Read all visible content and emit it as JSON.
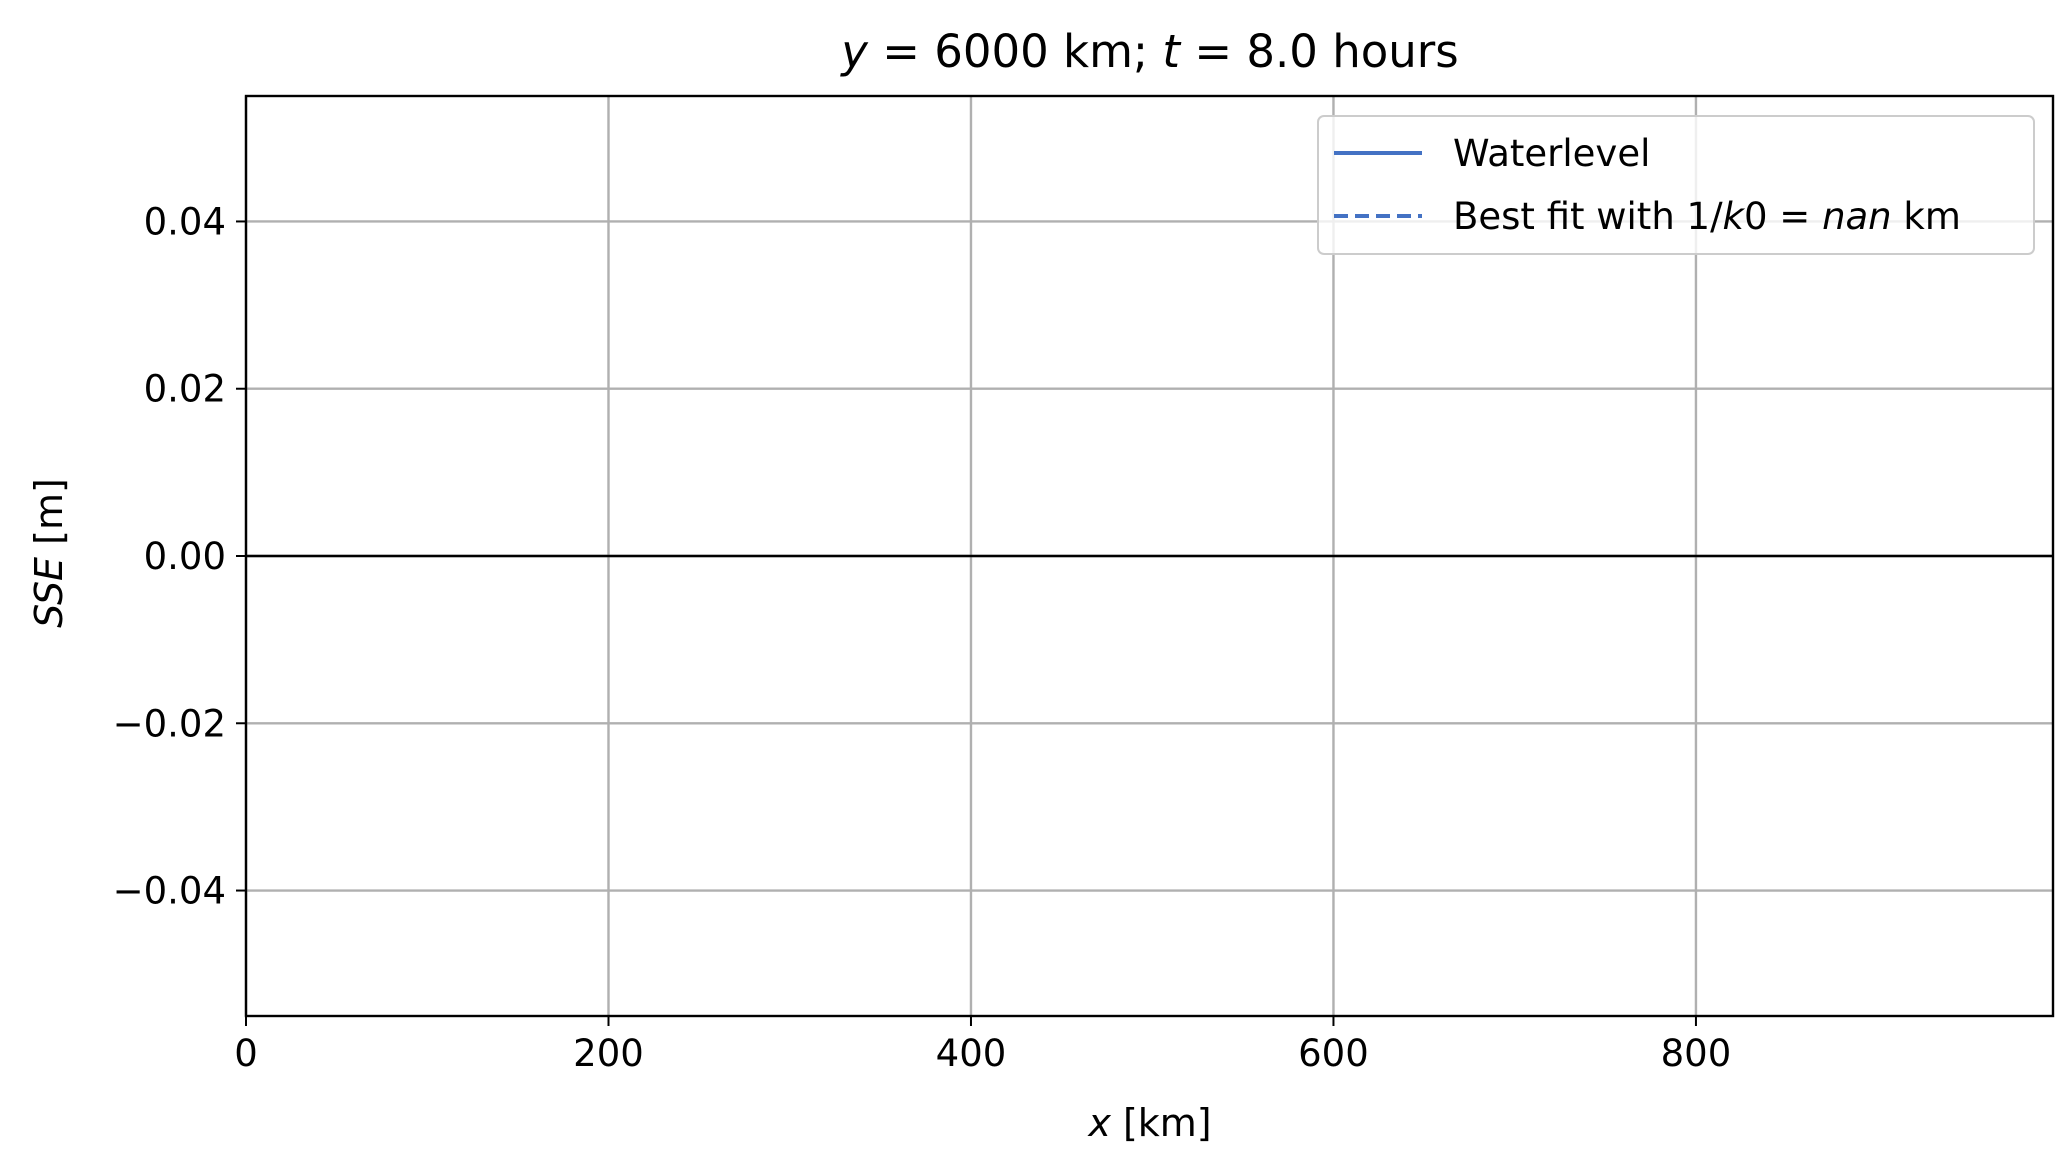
{
  "chart_data": {
    "type": "line",
    "title": {
      "y_var": "y",
      "y_rest": " = 6000 km; ",
      "t_var": "t",
      "t_rest": " = 8.0 hours"
    },
    "xlabel": {
      "var": "x",
      "unit": " [km]"
    },
    "ylabel": {
      "var": "SSE",
      "unit": " [m]"
    },
    "xlim": [
      0,
      997
    ],
    "ylim": [
      -0.055,
      0.055
    ],
    "x_ticks": [
      0,
      200,
      400,
      600,
      800
    ],
    "x_tick_labels": [
      "0",
      "200",
      "400",
      "600",
      "800"
    ],
    "y_ticks": [
      0.04,
      0.02,
      0.0,
      -0.02,
      -0.04
    ],
    "y_tick_labels": [
      "0.04",
      "0.02",
      "0.00",
      "−0.02",
      "−0.04"
    ],
    "grid": true,
    "reference_line": {
      "y": 0.0,
      "color": "#000000"
    },
    "series": [
      {
        "name": "Waterlevel",
        "style": "solid",
        "color": "#4472c4",
        "x": [],
        "y": []
      },
      {
        "name": "Best fit with 1/k0 = nan km",
        "style": "dashed",
        "color": "#4472c4",
        "x": [],
        "y": []
      }
    ],
    "legend": {
      "position": "top-right",
      "entries": [
        {
          "style": "solid",
          "color": "#4472c4",
          "parts": [
            {
              "t": "Waterlevel",
              "i": false
            }
          ]
        },
        {
          "style": "dashed",
          "color": "#4472c4",
          "parts": [
            {
              "t": "Best fit with 1/",
              "i": false
            },
            {
              "t": "k",
              "i": true
            },
            {
              "t": "0 = ",
              "i": false
            },
            {
              "t": "nan",
              "i": true
            },
            {
              "t": " km",
              "i": false
            }
          ]
        }
      ]
    }
  }
}
